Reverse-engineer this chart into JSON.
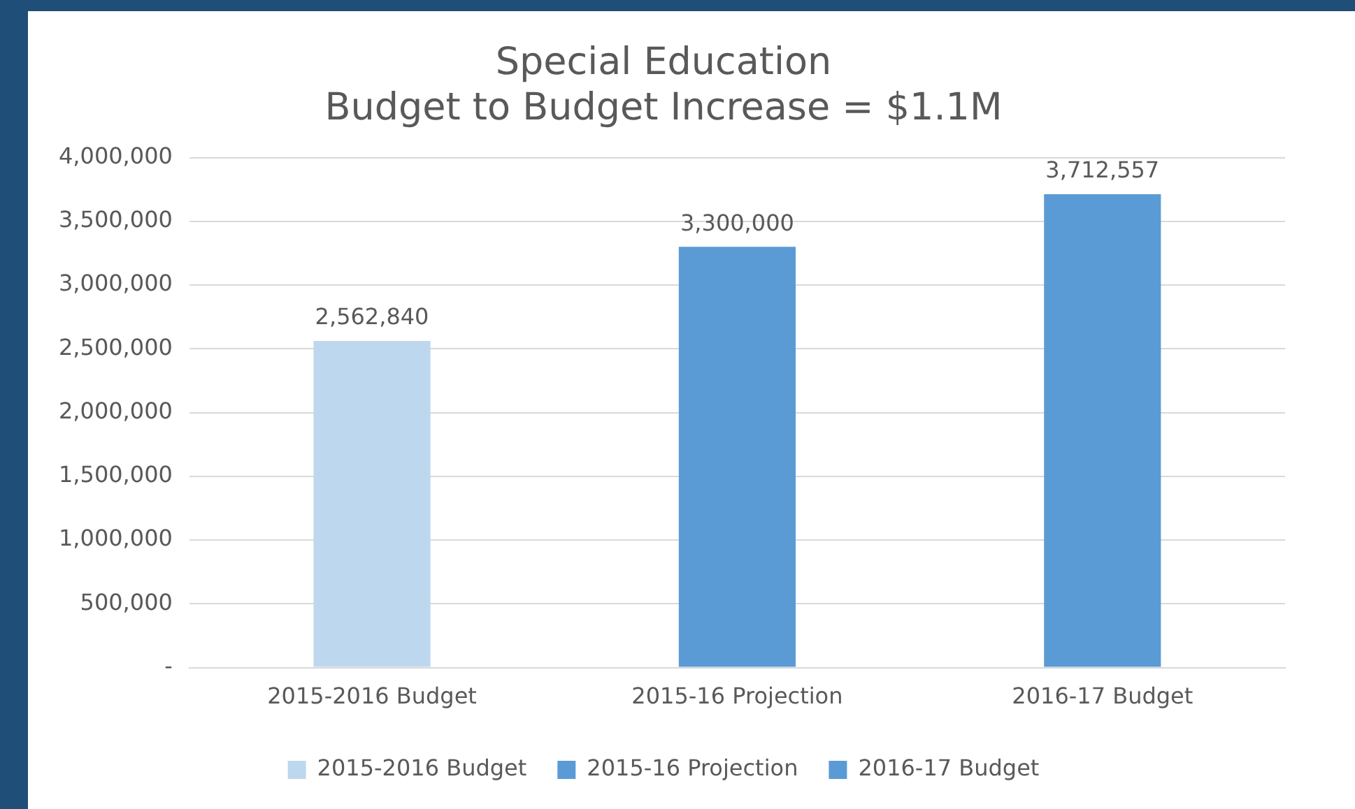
{
  "chart_data": {
    "type": "bar",
    "title": [
      "Special Education",
      "Budget to Budget Increase = $1.1M"
    ],
    "categories": [
      "2015-2016 Budget",
      "2015-16 Projection",
      "2016-17 Budget"
    ],
    "series": [
      {
        "name": "2015-2016 Budget",
        "color": "#bdd7ee",
        "values": [
          2562840,
          null,
          null
        ],
        "value_labels": [
          "2,562,840",
          null,
          null
        ]
      },
      {
        "name": "2015-16 Projection",
        "color": "#5b9bd5",
        "values": [
          null,
          3300000,
          null
        ],
        "value_labels": [
          null,
          "3,300,000",
          null
        ]
      },
      {
        "name": "2016-17 Budget",
        "color": "#5b9bd5",
        "values": [
          null,
          null,
          3712557
        ],
        "value_labels": [
          null,
          null,
          "3,712,557"
        ]
      }
    ],
    "stacked": true,
    "ylim": [
      0,
      4000000
    ],
    "yticks": [
      {
        "value": 0,
        "label": "-"
      },
      {
        "value": 500000,
        "label": "500,000"
      },
      {
        "value": 1000000,
        "label": "1,000,000"
      },
      {
        "value": 1500000,
        "label": "1,500,000"
      },
      {
        "value": 2000000,
        "label": "2,000,000"
      },
      {
        "value": 2500000,
        "label": "2,500,000"
      },
      {
        "value": 3000000,
        "label": "3,000,000"
      },
      {
        "value": 3500000,
        "label": "3,500,000"
      },
      {
        "value": 4000000,
        "label": "4,000,000"
      }
    ],
    "grid": "y",
    "legend": "bottom"
  }
}
